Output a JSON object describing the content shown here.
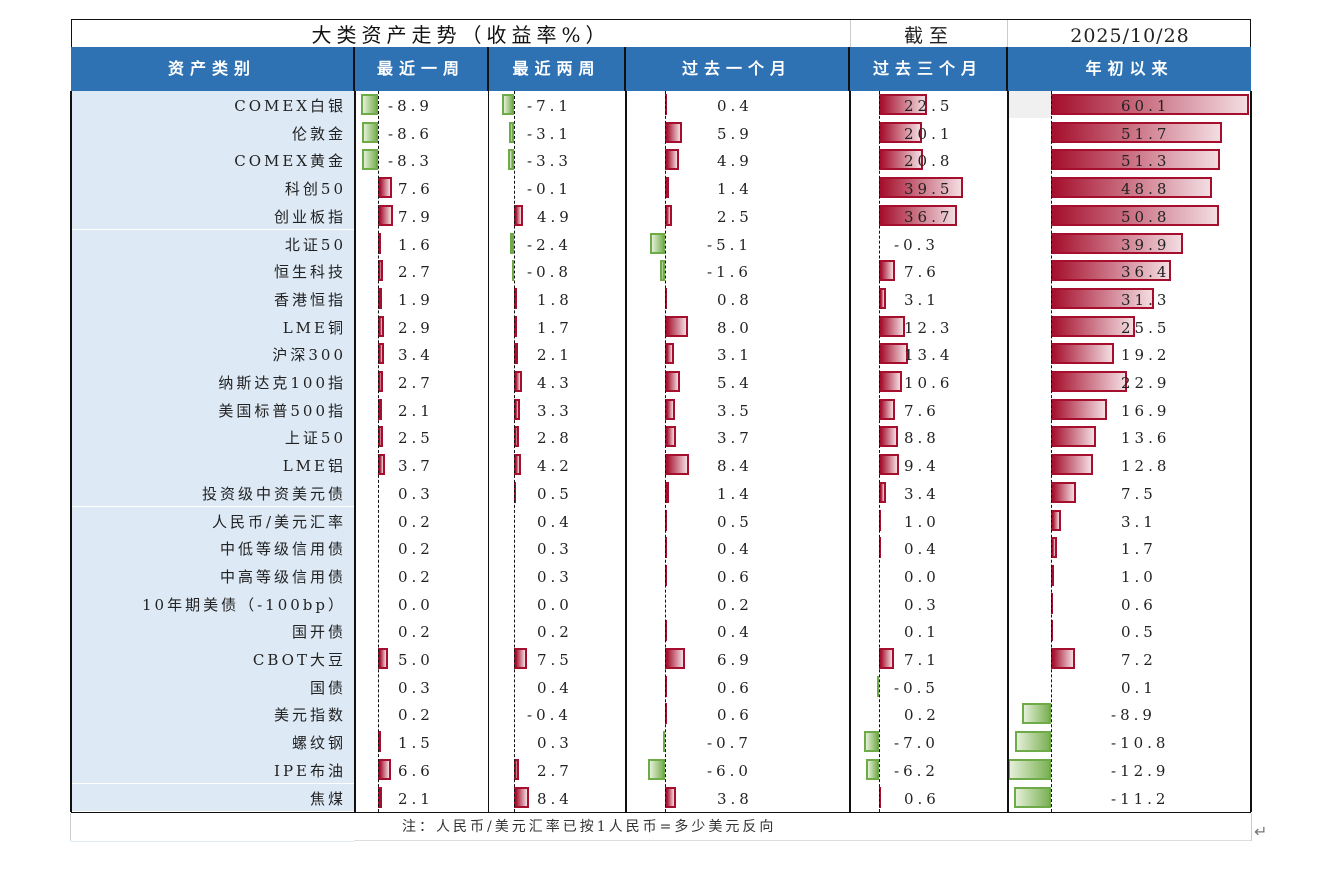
{
  "title": "大类资产走势（收益率%）",
  "as_of_label": "截至",
  "as_of_date": "2025/10/28",
  "headers": {
    "asset": "资产类别",
    "wk1": "最近一周",
    "wk2": "最近两周",
    "m1": "过去一个月",
    "m3": "过去三个月",
    "ytd": "年初以来"
  },
  "footnote": "注：人民币/美元汇率已按1人民币=多少美元反向",
  "colors": {
    "header_bg": "#2e72b4",
    "name_bg": "#dde9f5",
    "positive": "#a50f2d",
    "negative": "#6faa48"
  },
  "chart_data": {
    "type": "table",
    "title": "大类资产走势（收益率%）",
    "columns": [
      "资产类别",
      "最近一周",
      "最近两周",
      "过去一个月",
      "过去三个月",
      "年初以来"
    ],
    "rows": [
      {
        "name": "COMEX白银",
        "wk1": "-8.9",
        "wk2": "-7.1",
        "m1": "0.4",
        "m3": "22.5",
        "ytd": "60.1"
      },
      {
        "name": "伦敦金",
        "wk1": "-8.6",
        "wk2": "-3.1",
        "m1": "5.9",
        "m3": "20.1",
        "ytd": "51.7"
      },
      {
        "name": "COMEX黄金",
        "wk1": "-8.3",
        "wk2": "-3.3",
        "m1": "4.9",
        "m3": "20.8",
        "ytd": "51.3"
      },
      {
        "name": "科创50",
        "wk1": "7.6",
        "wk2": "-0.1",
        "m1": "1.4",
        "m3": "39.5",
        "ytd": "48.8"
      },
      {
        "name": "创业板指",
        "wk1": "7.9",
        "wk2": "4.9",
        "m1": "2.5",
        "m3": "36.7",
        "ytd": "50.8"
      },
      {
        "name": "北证50",
        "wk1": "1.6",
        "wk2": "-2.4",
        "m1": "-5.1",
        "m3": "-0.3",
        "ytd": "39.9"
      },
      {
        "name": "恒生科技",
        "wk1": "2.7",
        "wk2": "-0.8",
        "m1": "-1.6",
        "m3": "7.6",
        "ytd": "36.4"
      },
      {
        "name": "香港恒指",
        "wk1": "1.9",
        "wk2": "1.8",
        "m1": "0.8",
        "m3": "3.1",
        "ytd": "31.3"
      },
      {
        "name": "LME铜",
        "wk1": "2.9",
        "wk2": "1.7",
        "m1": "8.0",
        "m3": "12.3",
        "ytd": "25.5"
      },
      {
        "name": "沪深300",
        "wk1": "3.4",
        "wk2": "2.1",
        "m1": "3.1",
        "m3": "13.4",
        "ytd": "19.2"
      },
      {
        "name": "纳斯达克100指",
        "wk1": "2.7",
        "wk2": "4.3",
        "m1": "5.4",
        "m3": "10.6",
        "ytd": "22.9"
      },
      {
        "name": "美国标普500指",
        "wk1": "2.1",
        "wk2": "3.3",
        "m1": "3.5",
        "m3": "7.6",
        "ytd": "16.9"
      },
      {
        "name": "上证50",
        "wk1": "2.5",
        "wk2": "2.8",
        "m1": "3.7",
        "m3": "8.8",
        "ytd": "13.6"
      },
      {
        "name": "LME铝",
        "wk1": "3.7",
        "wk2": "4.2",
        "m1": "8.4",
        "m3": "9.4",
        "ytd": "12.8"
      },
      {
        "name": "投资级中资美元债",
        "wk1": "0.3",
        "wk2": "0.5",
        "m1": "1.4",
        "m3": "3.4",
        "ytd": "7.5"
      },
      {
        "name": "人民币/美元汇率",
        "wk1": "0.2",
        "wk2": "0.4",
        "m1": "0.5",
        "m3": "1.0",
        "ytd": "3.1"
      },
      {
        "name": "中低等级信用债",
        "wk1": "0.2",
        "wk2": "0.3",
        "m1": "0.4",
        "m3": "0.4",
        "ytd": "1.7"
      },
      {
        "name": "中高等级信用债",
        "wk1": "0.2",
        "wk2": "0.3",
        "m1": "0.6",
        "m3": "0.0",
        "ytd": "1.0"
      },
      {
        "name": "10年期美债（-100bp）",
        "wk1": "0.0",
        "wk2": "0.0",
        "m1": "0.2",
        "m3": "0.3",
        "ytd": "0.6"
      },
      {
        "name": "国开债",
        "wk1": "0.2",
        "wk2": "0.2",
        "m1": "0.4",
        "m3": "0.1",
        "ytd": "0.5"
      },
      {
        "name": "CBOT大豆",
        "wk1": "5.0",
        "wk2": "7.5",
        "m1": "6.9",
        "m3": "7.1",
        "ytd": "7.2"
      },
      {
        "name": "国债",
        "wk1": "0.3",
        "wk2": "0.4",
        "m1": "0.6",
        "m3": "-0.5",
        "ytd": "0.1"
      },
      {
        "name": "美元指数",
        "wk1": "0.2",
        "wk2": "-0.4",
        "m1": "0.6",
        "m3": "0.2",
        "ytd": "-8.9"
      },
      {
        "name": "螺纹钢",
        "wk1": "1.5",
        "wk2": "0.3",
        "m1": "-0.7",
        "m3": "-7.0",
        "ytd": "-10.8"
      },
      {
        "name": "IPE布油",
        "wk1": "6.6",
        "wk2": "2.7",
        "m1": "-6.0",
        "m3": "-6.2",
        "ytd": "-12.9"
      },
      {
        "name": "焦煤",
        "wk1": "2.1",
        "wk2": "8.4",
        "m1": "3.8",
        "m3": "0.6",
        "ytd": "-11.2"
      }
    ]
  }
}
